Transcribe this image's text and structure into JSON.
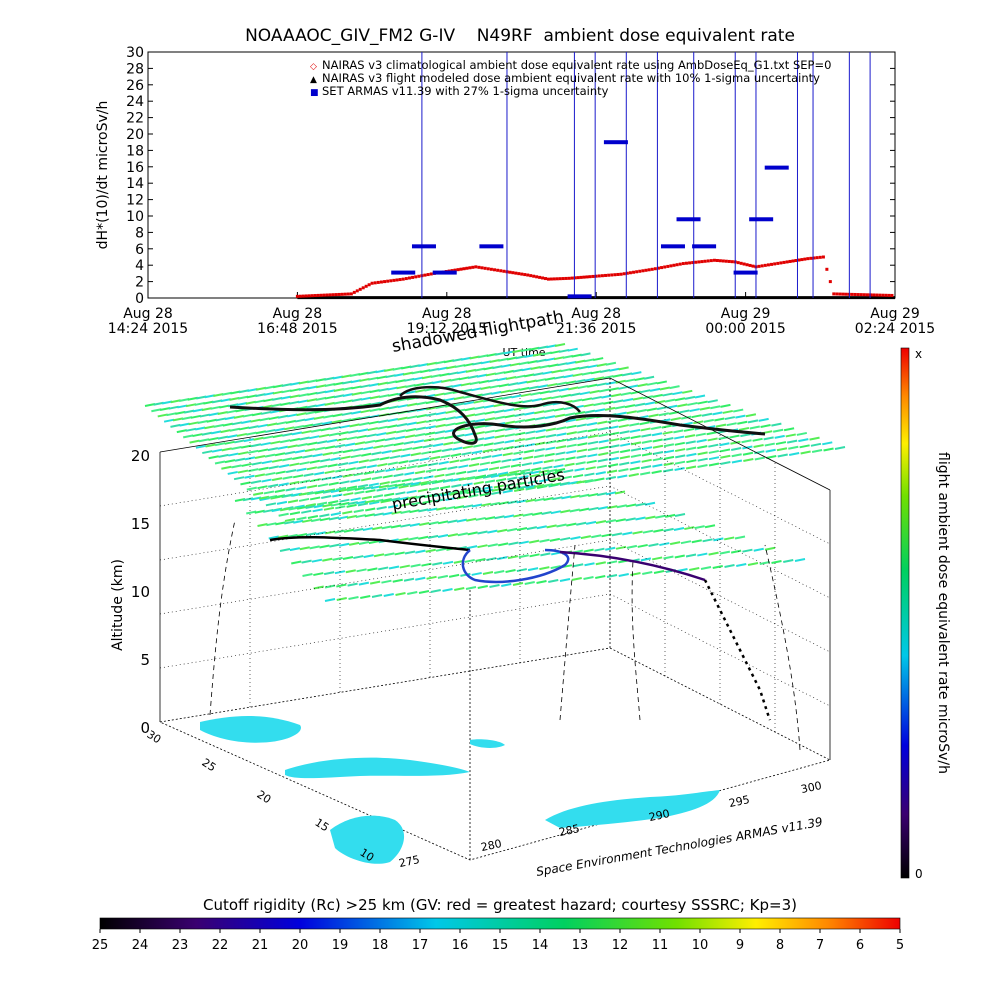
{
  "chart_data": [
    {
      "type": "line",
      "title": "NOAAAOC_GIV_FM2 G-IV    N49RF  ambient dose equivalent rate",
      "ylabel": "dH*(10)/dt microSv/h",
      "xlabel": "UT time",
      "ylim": [
        0,
        30
      ],
      "yticks": [
        "0",
        "2",
        "4",
        "6",
        "8",
        "10",
        "12",
        "14",
        "16",
        "18",
        "20",
        "22",
        "24",
        "26",
        "28",
        "30"
      ],
      "xticks": [
        {
          "date": "Aug 28",
          "time": "14:24 2015"
        },
        {
          "date": "Aug 28",
          "time": "16:48 2015"
        },
        {
          "date": "Aug 28",
          "time": "19:12 2015"
        },
        {
          "date": "Aug 28",
          "time": "21:36 2015"
        },
        {
          "date": "Aug 29",
          "time": "00:00 2015"
        },
        {
          "date": "Aug 29",
          "time": "02:24 2015"
        }
      ],
      "legend": [
        {
          "marker": "◇",
          "label": "NAIRAS v3 climatological ambient dose equivalent rate using AmbDoseEq_G1.txt SEP=0",
          "color": "#e00000"
        },
        {
          "marker": "▲",
          "label": "NAIRAS v3 flight modeled dose ambient equivalent rate with 10% 1-sigma uncertainty",
          "color": "#000000"
        },
        {
          "marker": "■",
          "label": "SET ARMAS v11.39 with 27% 1-sigma uncertainty",
          "color": "#0000cc"
        }
      ],
      "legend_position": "top-right",
      "series": [
        {
          "name": "NAIRAS v3 climatological ambient dose equivalent rate using AmbDoseEq_G1.txt SEP=0",
          "color": "#e00000",
          "x": [
            "2015-08-28T16:48",
            "2015-08-28T17:40",
            "2015-08-28T18:00",
            "2015-08-28T18:30",
            "2015-08-28T19:00",
            "2015-08-28T19:40",
            "2015-08-28T20:10",
            "2015-08-28T20:30",
            "2015-08-28T20:50",
            "2015-08-28T21:10",
            "2015-08-28T21:30",
            "2015-08-28T22:00",
            "2015-08-28T22:30",
            "2015-08-28T23:00",
            "2015-08-28T23:30",
            "2015-08-28T23:50",
            "2015-08-29T00:10",
            "2015-08-29T00:40",
            "2015-08-29T01:00",
            "2015-08-29T01:15",
            "2015-08-29T01:25",
            "2015-08-29T02:24"
          ],
          "y": [
            0.2,
            0.5,
            1.8,
            2.3,
            3.0,
            3.8,
            3.2,
            2.8,
            2.3,
            2.4,
            2.6,
            2.9,
            3.5,
            4.2,
            4.6,
            4.4,
            3.8,
            4.4,
            4.8,
            5.0,
            0.5,
            0.3
          ]
        },
        {
          "name": "NAIRAS v3 flight modeled dose ambient equivalent rate with 10% 1-sigma uncertainty",
          "color": "#000000",
          "x": [
            "2015-08-28T16:48",
            "2015-08-29T02:24"
          ],
          "y": [
            0.05,
            0.05
          ]
        },
        {
          "name": "SET ARMAS v11.39 with 27% 1-sigma uncertainty",
          "color": "#0000cc",
          "x": [
            "2015-08-28T18:30",
            "2015-08-28T18:50",
            "2015-08-28T19:10",
            "2015-08-28T19:55",
            "2015-08-28T21:20",
            "2015-08-28T21:55",
            "2015-08-28T22:50",
            "2015-08-28T23:05",
            "2015-08-28T23:20",
            "2015-08-29T00:00",
            "2015-08-29T00:15",
            "2015-08-29T00:30"
          ],
          "y": [
            3.1,
            6.3,
            3.1,
            6.3,
            0.2,
            19.0,
            6.3,
            9.6,
            6.3,
            3.1,
            9.6,
            15.9
          ]
        }
      ]
    },
    {
      "type": "scatter",
      "subtitle_flightpath": "shadowed flightpath",
      "subtitle_particles": "precipitating particles",
      "zlabel": "Altitude (km)",
      "zticks": [
        "0",
        "5",
        "10",
        "15",
        "20"
      ],
      "lat_ticks": [
        "10",
        "15",
        "20",
        "25",
        "30"
      ],
      "lon_ticks": [
        "275",
        "280",
        "285",
        "290",
        "295",
        "300"
      ],
      "credit": "Space Environment Technologies ARMAS v11.39",
      "colorbar_right": {
        "label": "flight ambient dose equivalent rate microSv/h",
        "top": "x",
        "bottom": "0"
      },
      "colorbar_bottom": {
        "title": "Cutoff rigidity (Rc) >25 km (GV: red = greatest hazard; courtesy SSSRC; Kp=3)",
        "ticks": [
          "25",
          "24",
          "23",
          "22",
          "21",
          "20",
          "19",
          "18",
          "17",
          "16",
          "15",
          "14",
          "13",
          "12",
          "11",
          "10",
          "9",
          "8",
          "7",
          "6",
          "5"
        ]
      }
    }
  ]
}
